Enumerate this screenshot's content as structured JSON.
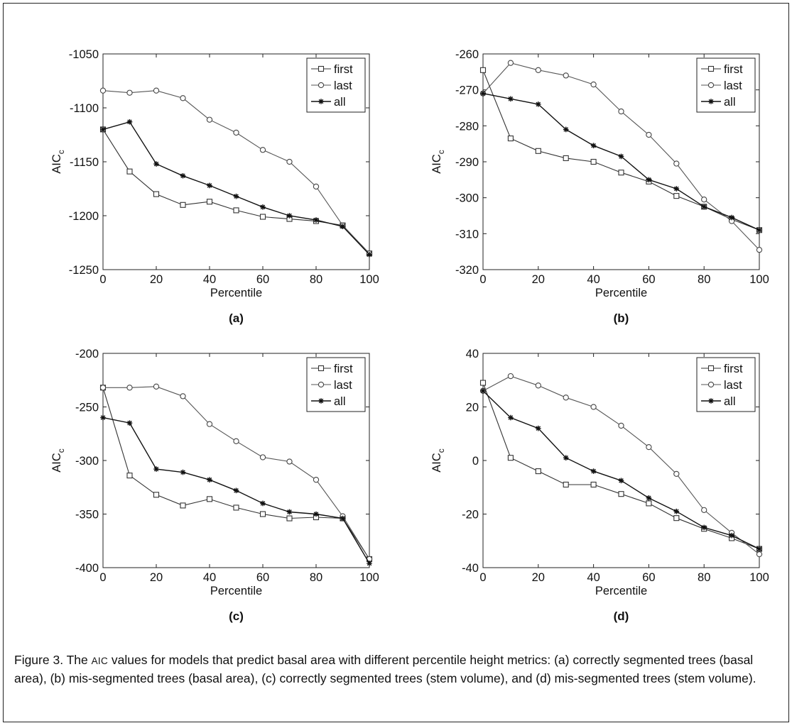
{
  "chart_data": [
    {
      "type": "line",
      "panel": "(a)",
      "xlabel": "Percentile",
      "ylabel": "AIC",
      "ylabel_sub": "c",
      "xlim": [
        0,
        100
      ],
      "ylim": [
        -1250,
        -1050
      ],
      "xticks": [
        0,
        20,
        40,
        60,
        80,
        100
      ],
      "yticks": [
        -1050,
        -1100,
        -1150,
        -1200,
        -1250
      ],
      "x": [
        0,
        10,
        20,
        30,
        40,
        50,
        60,
        70,
        80,
        90,
        100
      ],
      "legend": "top-right",
      "series": [
        {
          "name": "first",
          "marker": "square",
          "values": [
            -1120,
            -1159,
            -1180,
            -1190,
            -1187,
            -1195,
            -1201,
            -1203,
            -1205,
            -1209,
            -1235
          ]
        },
        {
          "name": "last",
          "marker": "circle",
          "values": [
            -1084,
            -1086,
            -1084,
            -1091,
            -1111,
            -1123,
            -1139,
            -1150,
            -1173,
            -1209,
            -1235
          ]
        },
        {
          "name": "all",
          "marker": "star",
          "values": [
            -1120,
            -1113,
            -1152,
            -1163,
            -1172,
            -1182,
            -1192,
            -1200,
            -1204,
            -1210,
            -1236
          ]
        }
      ]
    },
    {
      "type": "line",
      "panel": "(b)",
      "xlabel": "Percentile",
      "ylabel": "AIC",
      "ylabel_sub": "c",
      "xlim": [
        0,
        100
      ],
      "ylim": [
        -320,
        -260
      ],
      "xticks": [
        0,
        20,
        40,
        60,
        80,
        100
      ],
      "yticks": [
        -260,
        -270,
        -280,
        -290,
        -300,
        -310,
        -320
      ],
      "x": [
        0,
        10,
        20,
        30,
        40,
        50,
        60,
        70,
        80,
        90,
        100
      ],
      "legend": "top-right",
      "series": [
        {
          "name": "first",
          "marker": "square",
          "values": [
            -264.5,
            -283.5,
            -287,
            -289,
            -290,
            -293,
            -295.5,
            -299.5,
            -302.5,
            -306,
            -309
          ]
        },
        {
          "name": "last",
          "marker": "circle",
          "values": [
            -271,
            -262.5,
            -264.5,
            -266,
            -268.5,
            -276,
            -282.5,
            -290.5,
            -300.5,
            -306.5,
            -314.5
          ]
        },
        {
          "name": "all",
          "marker": "star",
          "values": [
            -271,
            -272.5,
            -274,
            -281,
            -285.5,
            -288.5,
            -295,
            -297.5,
            -302.5,
            -305.5,
            -309
          ]
        }
      ]
    },
    {
      "type": "line",
      "panel": "(c)",
      "xlabel": "Percentile",
      "ylabel": "AIC",
      "ylabel_sub": "c",
      "xlim": [
        0,
        100
      ],
      "ylim": [
        -400,
        -200
      ],
      "xticks": [
        0,
        20,
        40,
        60,
        80,
        100
      ],
      "yticks": [
        -200,
        -250,
        -300,
        -350,
        -400
      ],
      "x": [
        0,
        10,
        20,
        30,
        40,
        50,
        60,
        70,
        80,
        90,
        100
      ],
      "legend": "top-right",
      "series": [
        {
          "name": "first",
          "marker": "square",
          "values": [
            -232,
            -314,
            -332,
            -342,
            -336,
            -344,
            -350,
            -354,
            -353,
            -354,
            -392
          ]
        },
        {
          "name": "last",
          "marker": "circle",
          "values": [
            -232,
            -232,
            -231,
            -240,
            -266,
            -282,
            -297,
            -301,
            -318,
            -352,
            -392
          ]
        },
        {
          "name": "all",
          "marker": "star",
          "values": [
            -260,
            -265,
            -308,
            -311,
            -318,
            -328,
            -340,
            -348,
            -350,
            -354,
            -396
          ]
        }
      ]
    },
    {
      "type": "line",
      "panel": "(d)",
      "xlabel": "Percentile",
      "ylabel": "AIC",
      "ylabel_sub": "c",
      "xlim": [
        0,
        100
      ],
      "ylim": [
        -40,
        40
      ],
      "xticks": [
        0,
        20,
        40,
        60,
        80,
        100
      ],
      "yticks": [
        40,
        20,
        0,
        -20,
        -40
      ],
      "x": [
        0,
        10,
        20,
        30,
        40,
        50,
        60,
        70,
        80,
        90,
        100
      ],
      "legend": "top-right",
      "series": [
        {
          "name": "first",
          "marker": "square",
          "values": [
            29,
            1,
            -4,
            -9,
            -9,
            -12.5,
            -16,
            -21.5,
            -25.5,
            -29,
            -33
          ]
        },
        {
          "name": "last",
          "marker": "circle",
          "values": [
            26,
            31.5,
            28,
            23.5,
            20,
            13,
            5,
            -5,
            -18.5,
            -27,
            -35
          ]
        },
        {
          "name": "all",
          "marker": "star",
          "values": [
            26,
            16,
            12,
            1,
            -4,
            -7.5,
            -14,
            -19,
            -25,
            -28,
            -33
          ]
        }
      ]
    }
  ],
  "caption": {
    "prefix": "Figure 3. The ",
    "aic": "AIC",
    "rest": " values for models that predict basal area with different percentile height metrics: (a) correctly segmented trees (basal area), (b) mis-segmented trees (basal area), (c) correctly segmented trees (stem volume), and (d) mis-segmented trees (stem volume)."
  }
}
